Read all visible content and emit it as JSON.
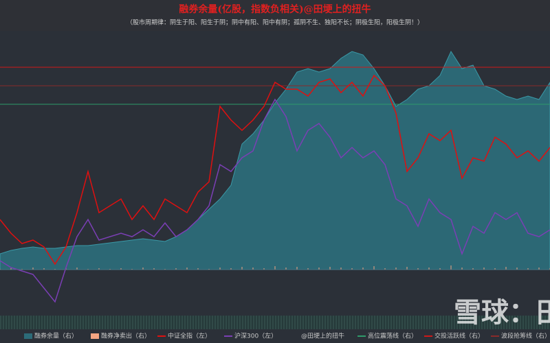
{
  "chart_data": {
    "type": "line",
    "title": "融券余量(亿股，指数负相关)@田埂上的扭牛",
    "subtitle": "（股市周期律：阴生于阳、阳生于阴；阴中有阳、阳中有阴；孤阴不生、独阳不长；阴极生阳，阳极生阴！）",
    "watermark": "雪球：田",
    "ylim": [
      0,
      415
    ],
    "y2lim": [
      -67,
      348
    ],
    "series": [
      {
        "name": "融券余量（右）",
        "type": "area",
        "color": "#2c6b78",
        "values": [
          90,
          95,
          98,
          100,
          98,
          98,
          100,
          102,
          102,
          104,
          106,
          108,
          110,
          112,
          110,
          108,
          115,
          125,
          140,
          155,
          170,
          190,
          250,
          265,
          285,
          310,
          330,
          355,
          360,
          355,
          360,
          375,
          385,
          380,
          360,
          335,
          305,
          315,
          330,
          335,
          350,
          385,
          360,
          365,
          335,
          330,
          320,
          315,
          320,
          315,
          340
        ]
      },
      {
        "name": "融券净卖出（右）",
        "type": "bar",
        "color": "#f4a582",
        "axis": "y2",
        "values": [
          1,
          2,
          1,
          3,
          2,
          1,
          2,
          3,
          1,
          2,
          1,
          2,
          1,
          3,
          2,
          1,
          2,
          3,
          2,
          1,
          3,
          2,
          4,
          3,
          2,
          5,
          3,
          4,
          2,
          3,
          4,
          3,
          2,
          3,
          5,
          2,
          3,
          4,
          2,
          3,
          2,
          6,
          3,
          2,
          3,
          2,
          4,
          3,
          2,
          3,
          2
        ]
      },
      {
        "name": "中证全指（左）",
        "type": "line",
        "color": "#e01010",
        "values": [
          140,
          120,
          105,
          110,
          100,
          75,
          100,
          150,
          210,
          150,
          160,
          170,
          140,
          160,
          140,
          170,
          160,
          150,
          180,
          195,
          305,
          285,
          270,
          285,
          305,
          340,
          330,
          330,
          320,
          340,
          345,
          325,
          340,
          320,
          350,
          335,
          295,
          210,
          230,
          265,
          255,
          270,
          200,
          230,
          225,
          260,
          250,
          230,
          240,
          225,
          245
        ]
      },
      {
        "name": "沪深300（左）",
        "type": "line",
        "color": "#7b3fb5",
        "values": [
          80,
          70,
          65,
          60,
          40,
          20,
          70,
          115,
          140,
          110,
          115,
          120,
          115,
          125,
          115,
          135,
          115,
          125,
          140,
          160,
          220,
          210,
          230,
          240,
          285,
          315,
          290,
          240,
          270,
          280,
          260,
          230,
          245,
          230,
          240,
          220,
          170,
          160,
          130,
          170,
          150,
          140,
          90,
          130,
          120,
          150,
          140,
          150,
          120,
          115,
          125
        ]
      }
    ],
    "legend_note": "@田埂上的扭牛",
    "reference_lines": [
      {
        "name": "高位震荡线（右）",
        "color": "#2e9b6a",
        "value": 308
      },
      {
        "name": "交投活跃线（右）",
        "color": "#d01818",
        "value": 362
      },
      {
        "name": "波段抢筹线（右）",
        "color": "#8a2a2a",
        "value": 335
      }
    ]
  }
}
